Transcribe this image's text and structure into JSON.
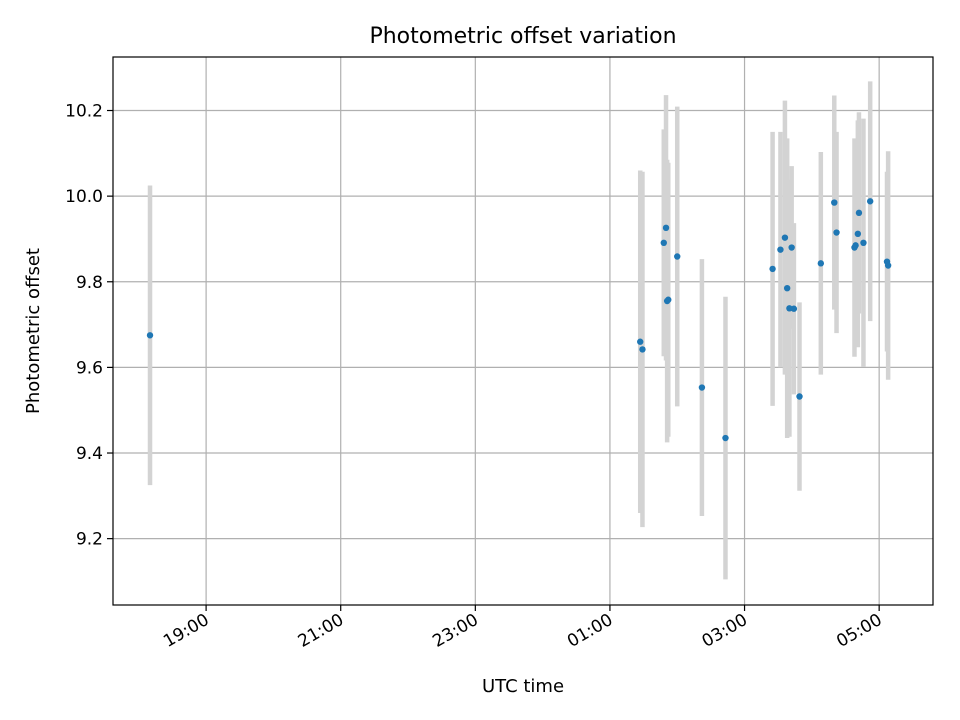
{
  "chart_data": {
    "type": "scatter",
    "title": "Photometric offset variation",
    "xlabel": "UTC time",
    "ylabel": "Photometric offset",
    "x_tick_labels": [
      "19:00",
      "21:00",
      "23:00",
      "01:00",
      "03:00",
      "05:00"
    ],
    "y_tick_labels": [
      "9.2",
      "9.4",
      "9.6",
      "9.8",
      "10.0",
      "10.2"
    ],
    "y_ticks": [
      9.2,
      9.4,
      9.6,
      9.8,
      10.0,
      10.2
    ],
    "ylim": [
      9.045,
      10.325
    ],
    "xlim": [
      "17:37",
      "05:48"
    ],
    "grid": true,
    "x_tick_rotation_deg": 30,
    "colors": {
      "point": "#1f77b4",
      "errorbar": "#d3d3d3",
      "grid": "#b0b0b0"
    },
    "points": [
      {
        "time": "18:10",
        "y": 9.675,
        "err": 0.35
      },
      {
        "time": "01:27",
        "y": 9.66,
        "err": 0.4
      },
      {
        "time": "01:29",
        "y": 9.642,
        "err": 0.415
      },
      {
        "time": "01:48",
        "y": 9.891,
        "err": 0.265
      },
      {
        "time": "01:50",
        "y": 9.926,
        "err": 0.31
      },
      {
        "time": "01:51",
        "y": 9.755,
        "err": 0.33
      },
      {
        "time": "01:52",
        "y": 9.758,
        "err": 0.32
      },
      {
        "time": "02:00",
        "y": 9.859,
        "err": 0.35
      },
      {
        "time": "02:22",
        "y": 9.553,
        "err": 0.3
      },
      {
        "time": "02:43",
        "y": 9.435,
        "err": 0.33
      },
      {
        "time": "03:25",
        "y": 9.83,
        "err": 0.32
      },
      {
        "time": "03:32",
        "y": 9.875,
        "err": 0.275
      },
      {
        "time": "03:36",
        "y": 9.903,
        "err": 0.32
      },
      {
        "time": "03:38",
        "y": 9.785,
        "err": 0.35
      },
      {
        "time": "03:40",
        "y": 9.738,
        "err": 0.3
      },
      {
        "time": "03:42",
        "y": 9.88,
        "err": 0.19
      },
      {
        "time": "03:44",
        "y": 9.737,
        "err": 0.2
      },
      {
        "time": "03:49",
        "y": 9.532,
        "err": 0.22
      },
      {
        "time": "04:08",
        "y": 9.843,
        "err": 0.26
      },
      {
        "time": "04:20",
        "y": 9.985,
        "err": 0.25
      },
      {
        "time": "04:22",
        "y": 9.915,
        "err": 0.235
      },
      {
        "time": "04:38",
        "y": 9.88,
        "err": 0.255
      },
      {
        "time": "04:39",
        "y": 9.885,
        "err": 0.2
      },
      {
        "time": "04:41",
        "y": 9.912,
        "err": 0.265
      },
      {
        "time": "04:42",
        "y": 9.961,
        "err": 0.235
      },
      {
        "time": "04:46",
        "y": 9.891,
        "err": 0.29
      },
      {
        "time": "04:52",
        "y": 9.988,
        "err": 0.28
      },
      {
        "time": "05:07",
        "y": 9.847,
        "err": 0.21
      },
      {
        "time": "05:08",
        "y": 9.838,
        "err": 0.267
      }
    ]
  }
}
